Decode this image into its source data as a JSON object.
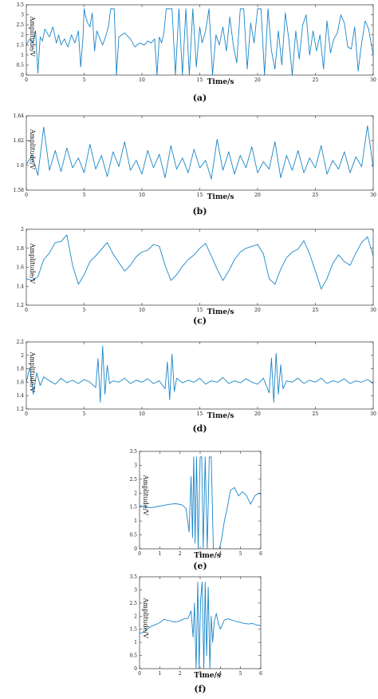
{
  "chart_data": [
    {
      "type": "line",
      "caption": "(a)",
      "xlabel": "Time/s",
      "ylabel": "Amplitude/V",
      "xlim": [
        0,
        30
      ],
      "ylim": [
        0,
        3.5
      ],
      "xticks": [
        0,
        5,
        10,
        15,
        20,
        25,
        30
      ],
      "yticks": [
        0,
        0.5,
        1,
        1.5,
        2,
        2.5,
        3,
        3.5
      ],
      "ytick_labels": [
        "0",
        "0.5",
        "1",
        "1.5",
        "2",
        "2.5",
        "3",
        "3.5"
      ],
      "color": "#1a86c8",
      "grid": false,
      "x": [
        0.0,
        0.3,
        0.6,
        0.8,
        1.0,
        1.2,
        1.4,
        1.6,
        2.0,
        2.3,
        2.6,
        2.8,
        3.0,
        3.3,
        3.6,
        3.9,
        4.2,
        4.5,
        4.7,
        4.9,
        5.0,
        5.1,
        5.3,
        5.5,
        5.7,
        5.9,
        6.1,
        6.3,
        6.6,
        6.9,
        7.1,
        7.3,
        7.6,
        7.8,
        8.0,
        8.5,
        9.0,
        9.4,
        9.8,
        10.2,
        10.5,
        10.8,
        11.1,
        11.3,
        11.5,
        11.7,
        11.9,
        12.1,
        12.3,
        12.6,
        12.9,
        13.2,
        13.5,
        13.8,
        14.1,
        14.4,
        14.7,
        15.0,
        15.2,
        15.5,
        15.8,
        16.1,
        16.4,
        16.7,
        17.0,
        17.3,
        17.6,
        17.9,
        18.2,
        18.5,
        18.8,
        19.1,
        19.4,
        19.7,
        20.0,
        20.3,
        20.6,
        20.9,
        21.2,
        21.5,
        21.8,
        22.1,
        22.4,
        22.7,
        23.0,
        23.3,
        23.6,
        23.9,
        24.2,
        24.5,
        24.8,
        25.1,
        25.4,
        25.7,
        26.0,
        26.3,
        26.6,
        26.9,
        27.2,
        27.5,
        27.8,
        28.1,
        28.4,
        28.7,
        29.0,
        29.3,
        29.6,
        30.0
      ],
      "y": [
        1.5,
        1.8,
        1.6,
        2.2,
        0.1,
        1.9,
        1.7,
        2.3,
        1.9,
        2.4,
        1.6,
        2.0,
        1.5,
        1.8,
        1.4,
        2.0,
        1.6,
        2.2,
        0.4,
        1.9,
        3.3,
        3.0,
        2.6,
        2.4,
        3.1,
        1.2,
        2.2,
        1.9,
        1.5,
        2.0,
        2.4,
        3.3,
        3.3,
        0.0,
        1.9,
        2.1,
        1.8,
        1.4,
        1.6,
        1.5,
        1.7,
        1.6,
        1.8,
        0.0,
        1.9,
        1.6,
        2.1,
        3.3,
        3.3,
        3.3,
        0.0,
        3.3,
        0.0,
        3.3,
        0.0,
        3.3,
        0.4,
        2.4,
        1.6,
        2.2,
        3.3,
        0.0,
        2.0,
        1.5,
        2.4,
        1.2,
        2.9,
        1.5,
        0.6,
        3.3,
        3.3,
        0.3,
        2.6,
        1.6,
        3.3,
        3.3,
        0.0,
        3.3,
        1.2,
        0.3,
        2.2,
        0.5,
        3.1,
        1.8,
        0.0,
        2.2,
        0.8,
        2.5,
        3.0,
        1.0,
        2.2,
        1.2,
        2.0,
        0.3,
        2.7,
        1.1,
        1.8,
        2.1,
        3.0,
        2.6,
        1.4,
        1.3,
        2.4,
        0.2,
        1.6,
        2.7,
        2.3,
        1.0
      ]
    },
    {
      "type": "line",
      "caption": "(b)",
      "xlabel": "Time/s",
      "ylabel": "Amplitude/V",
      "xlim": [
        0,
        30
      ],
      "ylim": [
        1.58,
        1.64
      ],
      "xticks": [
        0,
        5,
        10,
        15,
        20,
        25,
        30
      ],
      "yticks": [
        1.58,
        1.6,
        1.62,
        1.64
      ],
      "ytick_labels": [
        "1.58",
        "1.6",
        "1.62",
        "1.64"
      ],
      "color": "#1a86c8",
      "grid": false,
      "x": [
        0.0,
        0.5,
        1.0,
        1.5,
        2.0,
        2.5,
        3.0,
        3.5,
        4.0,
        4.5,
        5.0,
        5.5,
        6.0,
        6.5,
        7.0,
        7.5,
        8.0,
        8.5,
        9.0,
        9.5,
        10.0,
        10.5,
        11.0,
        11.5,
        12.0,
        12.5,
        13.0,
        13.5,
        14.0,
        14.5,
        15.0,
        15.5,
        16.0,
        16.5,
        17.0,
        17.5,
        18.0,
        18.5,
        19.0,
        19.5,
        20.0,
        20.5,
        21.0,
        21.5,
        22.0,
        22.5,
        23.0,
        23.5,
        24.0,
        24.5,
        25.0,
        25.5,
        26.0,
        26.5,
        27.0,
        27.5,
        28.0,
        28.5,
        29.0,
        29.5,
        30.0
      ],
      "y": [
        1.601,
        1.608,
        1.592,
        1.631,
        1.596,
        1.612,
        1.595,
        1.614,
        1.598,
        1.606,
        1.594,
        1.617,
        1.597,
        1.608,
        1.591,
        1.611,
        1.599,
        1.619,
        1.596,
        1.604,
        1.593,
        1.612,
        1.598,
        1.609,
        1.59,
        1.616,
        1.597,
        1.606,
        1.594,
        1.613,
        1.598,
        1.604,
        1.589,
        1.621,
        1.596,
        1.611,
        1.593,
        1.608,
        1.598,
        1.615,
        1.594,
        1.603,
        1.597,
        1.619,
        1.59,
        1.608,
        1.596,
        1.612,
        1.594,
        1.606,
        1.598,
        1.616,
        1.593,
        1.604,
        1.597,
        1.611,
        1.594,
        1.607,
        1.599,
        1.632,
        1.598
      ]
    },
    {
      "type": "line",
      "caption": "(c)",
      "xlabel": "Time/s",
      "ylabel": "Amplitude/V",
      "xlim": [
        0,
        30
      ],
      "ylim": [
        1.2,
        2.0
      ],
      "xticks": [
        0,
        5,
        10,
        15,
        20,
        25,
        30
      ],
      "yticks": [
        1.2,
        1.4,
        1.6,
        1.8,
        2.0
      ],
      "ytick_labels": [
        "1.2",
        "1.4",
        "1.6",
        "1.8",
        "2"
      ],
      "color": "#1a86c8",
      "grid": false,
      "x": [
        0.0,
        0.5,
        1.0,
        1.5,
        2.0,
        2.5,
        3.0,
        3.5,
        4.0,
        4.5,
        5.0,
        5.5,
        6.0,
        6.5,
        7.0,
        7.5,
        8.0,
        8.5,
        9.0,
        9.5,
        10.0,
        10.5,
        11.0,
        11.5,
        12.0,
        12.5,
        13.0,
        13.5,
        14.0,
        14.5,
        15.0,
        15.5,
        16.0,
        16.5,
        17.0,
        17.5,
        18.0,
        18.5,
        19.0,
        19.5,
        20.0,
        20.5,
        21.0,
        21.5,
        22.0,
        22.5,
        23.0,
        23.5,
        24.0,
        24.5,
        25.0,
        25.5,
        26.0,
        26.5,
        27.0,
        27.5,
        28.0,
        28.5,
        29.0,
        29.5,
        30.0
      ],
      "y": [
        1.48,
        1.46,
        1.5,
        1.68,
        1.75,
        1.86,
        1.87,
        1.94,
        1.62,
        1.42,
        1.52,
        1.66,
        1.72,
        1.79,
        1.86,
        1.74,
        1.65,
        1.56,
        1.62,
        1.71,
        1.76,
        1.78,
        1.84,
        1.82,
        1.62,
        1.46,
        1.52,
        1.61,
        1.68,
        1.73,
        1.8,
        1.85,
        1.72,
        1.58,
        1.46,
        1.56,
        1.68,
        1.76,
        1.8,
        1.82,
        1.84,
        1.74,
        1.48,
        1.42,
        1.58,
        1.7,
        1.76,
        1.79,
        1.88,
        1.74,
        1.56,
        1.37,
        1.48,
        1.64,
        1.73,
        1.66,
        1.62,
        1.75,
        1.86,
        1.92,
        1.72
      ]
    },
    {
      "type": "line",
      "caption": "(d)",
      "xlabel": "Time/s",
      "ylabel": "Amplitude/V",
      "xlim": [
        0,
        30
      ],
      "ylim": [
        1.2,
        2.2
      ],
      "xticks": [
        0,
        5,
        10,
        15,
        20,
        25,
        30
      ],
      "yticks": [
        1.2,
        1.4,
        1.6,
        1.8,
        2.0,
        2.2
      ],
      "ytick_labels": [
        "1.2",
        "1.4",
        "1.6",
        "1.8",
        "2",
        "2.2"
      ],
      "color": "#1a86c8",
      "grid": false,
      "x": [
        0.0,
        0.3,
        0.6,
        0.9,
        1.2,
        1.5,
        2.0,
        2.5,
        3.0,
        3.5,
        4.0,
        4.5,
        5.0,
        5.5,
        6.0,
        6.2,
        6.4,
        6.6,
        6.8,
        7.0,
        7.2,
        7.5,
        8.0,
        8.5,
        9.0,
        9.5,
        10.0,
        10.5,
        11.0,
        11.5,
        12.0,
        12.2,
        12.4,
        12.6,
        12.8,
        13.0,
        13.5,
        14.0,
        14.5,
        15.0,
        15.5,
        16.0,
        16.5,
        17.0,
        17.5,
        18.0,
        18.5,
        19.0,
        19.5,
        20.0,
        20.5,
        21.0,
        21.2,
        21.4,
        21.6,
        21.8,
        22.0,
        22.2,
        22.5,
        23.0,
        23.5,
        24.0,
        24.5,
        25.0,
        25.5,
        26.0,
        26.5,
        27.0,
        27.5,
        28.0,
        28.5,
        29.0,
        29.5,
        30.0
      ],
      "y": [
        1.6,
        1.82,
        1.42,
        1.74,
        1.55,
        1.68,
        1.62,
        1.57,
        1.66,
        1.59,
        1.63,
        1.58,
        1.64,
        1.6,
        1.52,
        1.95,
        1.3,
        2.14,
        1.42,
        1.85,
        1.58,
        1.62,
        1.6,
        1.66,
        1.58,
        1.63,
        1.6,
        1.65,
        1.58,
        1.62,
        1.5,
        1.9,
        1.34,
        2.02,
        1.46,
        1.66,
        1.59,
        1.63,
        1.6,
        1.66,
        1.57,
        1.62,
        1.6,
        1.67,
        1.58,
        1.62,
        1.59,
        1.65,
        1.6,
        1.57,
        1.66,
        1.44,
        1.96,
        1.3,
        2.03,
        1.42,
        1.86,
        1.5,
        1.62,
        1.6,
        1.66,
        1.58,
        1.63,
        1.6,
        1.66,
        1.58,
        1.62,
        1.6,
        1.65,
        1.58,
        1.62,
        1.6,
        1.64,
        1.58
      ]
    },
    {
      "type": "line",
      "caption": "(e)",
      "xlabel": "Time/s",
      "ylabel": "Amplitude/V",
      "xlim": [
        0,
        6
      ],
      "ylim": [
        0,
        3.5
      ],
      "xticks": [
        0,
        1,
        2,
        3,
        4,
        5,
        6
      ],
      "yticks": [
        0,
        0.5,
        1,
        1.5,
        2,
        2.5,
        3,
        3.5
      ],
      "ytick_labels": [
        "0",
        "0.5",
        "1",
        "1.5",
        "2",
        "2.5",
        "3",
        "3.5"
      ],
      "color": "#1a86c8",
      "grid": false,
      "x": [
        0.0,
        0.3,
        0.6,
        0.9,
        1.2,
        1.5,
        1.8,
        2.1,
        2.3,
        2.45,
        2.55,
        2.62,
        2.68,
        2.75,
        2.82,
        2.9,
        3.0,
        3.08,
        3.15,
        3.25,
        3.35,
        3.45,
        3.55,
        3.65,
        3.75,
        3.85,
        3.95,
        4.05,
        4.2,
        4.35,
        4.5,
        4.7,
        4.9,
        5.1,
        5.3,
        5.5,
        5.7,
        5.9,
        6.0
      ],
      "y": [
        1.55,
        1.5,
        1.48,
        1.52,
        1.56,
        1.6,
        1.62,
        1.58,
        1.45,
        0.6,
        2.6,
        0.4,
        3.3,
        0.2,
        3.3,
        0.0,
        3.3,
        3.3,
        0.0,
        3.3,
        0.0,
        3.3,
        3.3,
        0.0,
        0.0,
        0.0,
        0.0,
        0.3,
        1.0,
        1.5,
        2.1,
        2.2,
        1.9,
        2.05,
        1.9,
        1.6,
        1.9,
        2.0,
        1.95
      ]
    },
    {
      "type": "line",
      "caption": "(f)",
      "xlabel": "Time/s",
      "ylabel": "Amplitude/V",
      "xlim": [
        0,
        6
      ],
      "ylim": [
        0,
        3.5
      ],
      "xticks": [
        0,
        1,
        2,
        3,
        4,
        5,
        6
      ],
      "yticks": [
        0,
        0.5,
        1,
        1.5,
        2,
        2.5,
        3,
        3.5
      ],
      "ytick_labels": [
        "0",
        "0.5",
        "1",
        "1.5",
        "2",
        "2.5",
        "3",
        "3.5"
      ],
      "color": "#1a86c8",
      "grid": false,
      "x": [
        0.0,
        0.2,
        0.4,
        0.6,
        0.8,
        1.0,
        1.2,
        1.4,
        1.6,
        1.8,
        2.0,
        2.2,
        2.4,
        2.55,
        2.65,
        2.72,
        2.8,
        2.88,
        2.95,
        3.02,
        3.1,
        3.18,
        3.25,
        3.32,
        3.4,
        3.48,
        3.55,
        3.62,
        3.7,
        3.8,
        3.9,
        4.0,
        4.2,
        4.4,
        4.6,
        4.8,
        5.0,
        5.2,
        5.4,
        5.6,
        5.8,
        6.0
      ],
      "y": [
        1.35,
        1.38,
        1.52,
        1.62,
        1.68,
        1.75,
        1.88,
        1.84,
        1.8,
        1.78,
        1.82,
        1.9,
        1.92,
        2.2,
        1.2,
        2.5,
        0.0,
        3.3,
        0.0,
        2.6,
        3.3,
        0.0,
        3.3,
        0.5,
        3.1,
        0.0,
        2.0,
        1.0,
        1.8,
        2.1,
        1.72,
        1.5,
        1.86,
        1.9,
        1.84,
        1.8,
        1.76,
        1.72,
        1.7,
        1.72,
        1.66,
        1.64
      ]
    }
  ]
}
